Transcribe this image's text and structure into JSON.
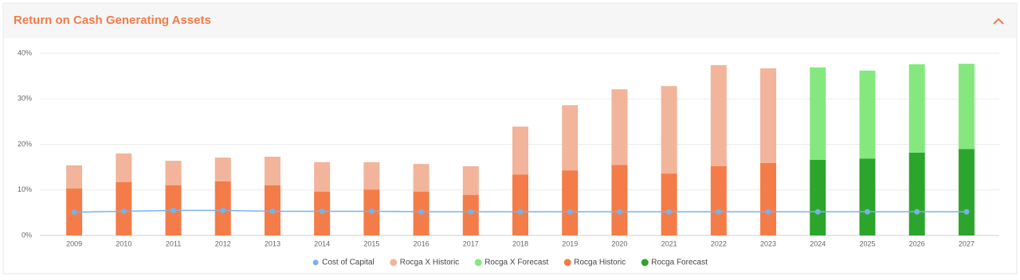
{
  "chart_data": {
    "type": "bar",
    "title": "Return on Cash Generating Assets",
    "categories": [
      "2009",
      "2010",
      "2011",
      "2012",
      "2013",
      "2014",
      "2015",
      "2016",
      "2017",
      "2018",
      "2019",
      "2020",
      "2021",
      "2022",
      "2023",
      "2024",
      "2025",
      "2026",
      "2027"
    ],
    "series": [
      {
        "name": "Cost of Capital",
        "type": "line",
        "color": "#7ab1e8",
        "values": [
          5.1,
          5.3,
          5.5,
          5.5,
          5.3,
          5.3,
          5.3,
          5.2,
          5.2,
          5.2,
          5.2,
          5.2,
          5.2,
          5.2,
          5.2,
          5.2,
          5.2,
          5.2,
          5.2
        ]
      },
      {
        "name": "Rocga X Historic",
        "type": "bar",
        "color": "#f2b49a",
        "values": [
          5.1,
          6.3,
          5.4,
          5.2,
          6.3,
          6.5,
          6.0,
          6.1,
          6.3,
          10.5,
          14.3,
          16.6,
          19.2,
          22.2,
          20.8,
          null,
          null,
          null,
          null
        ]
      },
      {
        "name": "Rocga X Forecast",
        "type": "bar",
        "color": "#85e87f",
        "values": [
          null,
          null,
          null,
          null,
          null,
          null,
          null,
          null,
          null,
          null,
          null,
          null,
          null,
          null,
          null,
          20.3,
          19.3,
          19.4,
          18.7
        ]
      },
      {
        "name": "Rocga Historic",
        "type": "bar",
        "color": "#f47c48",
        "values": [
          10.3,
          11.7,
          11.0,
          11.9,
          11.0,
          9.6,
          10.1,
          9.6,
          8.9,
          13.4,
          14.3,
          15.5,
          13.6,
          15.2,
          15.9,
          null,
          null,
          null,
          null
        ]
      },
      {
        "name": "Rocga Forecast",
        "type": "bar",
        "color": "#2ca52c",
        "values": [
          null,
          null,
          null,
          null,
          null,
          null,
          null,
          null,
          null,
          null,
          null,
          null,
          null,
          null,
          null,
          16.6,
          16.9,
          18.2,
          19.0
        ]
      }
    ],
    "ylim": [
      0,
      40
    ],
    "yticks": [
      {
        "value": 0,
        "label": "0%"
      },
      {
        "value": 10,
        "label": "10%"
      },
      {
        "value": 20,
        "label": "20%"
      },
      {
        "value": 30,
        "label": "30%"
      },
      {
        "value": 40,
        "label": "40%"
      }
    ],
    "grid": true
  }
}
